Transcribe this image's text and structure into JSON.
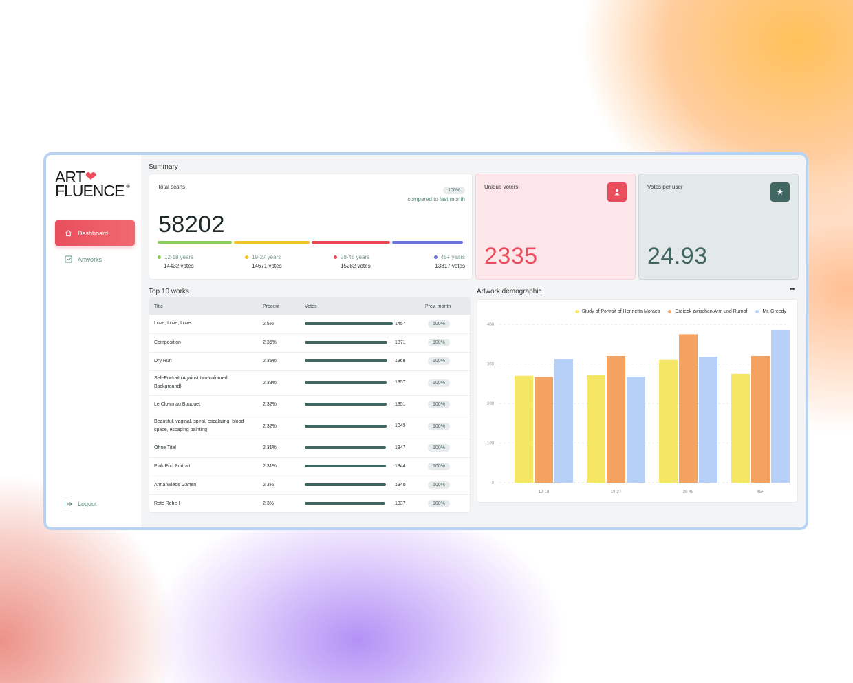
{
  "brand": {
    "logo_line1": "ART",
    "logo_line2": "FLUENCE",
    "logo_reg": "®"
  },
  "sidebar": {
    "items": [
      {
        "label": "Dashboard",
        "icon": "home-icon",
        "active": true
      },
      {
        "label": "Artworks",
        "icon": "chart-icon",
        "active": false
      }
    ],
    "logout_label": "Logout"
  },
  "summary": {
    "section_title": "Summary",
    "total_scans": {
      "label": "Total scans",
      "badge": "100%",
      "compare_text": "compared to last month",
      "value": "58202",
      "segments": [
        {
          "label": "12-18 years",
          "votes": "14432 votes",
          "color": "#8ccf5b"
        },
        {
          "label": "19-27 years",
          "votes": "14671 votes",
          "color": "#f5c129"
        },
        {
          "label": "28-45 years",
          "votes": "15282 votes",
          "color": "#ea4855"
        },
        {
          "label": "45+ years",
          "votes": "13817 votes",
          "color": "#6a72de"
        }
      ]
    },
    "unique_voters": {
      "label": "Unique voters",
      "value": "2335",
      "icon": "user-icon",
      "accent": "#e94e5d"
    },
    "votes_per_user": {
      "label": "Votes per user",
      "value": "24.93",
      "icon": "star-icon",
      "accent": "#3f6661"
    }
  },
  "top_works": {
    "section_title": "Top 10 works",
    "headers": {
      "title": "Title",
      "procent": "Procent",
      "votes": "Votes",
      "prev": "Prev. month"
    },
    "max_votes": 1457,
    "rows": [
      {
        "title": "Love, Love, Love",
        "procent": "2.5%",
        "votes": 1457,
        "prev": "100%"
      },
      {
        "title": "Composition",
        "procent": "2.36%",
        "votes": 1371,
        "prev": "100%"
      },
      {
        "title": "Dry Run",
        "procent": "2.35%",
        "votes": 1368,
        "prev": "100%"
      },
      {
        "title": "Self-Portrait (Against two-coloured Background)",
        "procent": "2.33%",
        "votes": 1357,
        "prev": "100%"
      },
      {
        "title": "Le Clown au Bouquet",
        "procent": "2.32%",
        "votes": 1351,
        "prev": "100%"
      },
      {
        "title": "Beautiful, vaginal, spiral, escalating, blood space, escaping painting",
        "procent": "2.32%",
        "votes": 1349,
        "prev": "100%"
      },
      {
        "title": "Ohne Titel",
        "procent": "2.31%",
        "votes": 1347,
        "prev": "100%"
      },
      {
        "title": "Pink Pod Portrait",
        "procent": "2.31%",
        "votes": 1344,
        "prev": "100%"
      },
      {
        "title": "Anna Wieds Garten",
        "procent": "2.3%",
        "votes": 1340,
        "prev": "100%"
      },
      {
        "title": "Rote Rehe I",
        "procent": "2.3%",
        "votes": 1337,
        "prev": "100%"
      }
    ]
  },
  "demographic": {
    "section_title": "Artwork demographic",
    "more_label": "•••"
  },
  "chart_data": {
    "type": "bar",
    "title": "Artwork demographic",
    "categories": [
      "12-18",
      "19-27",
      "28-45",
      "45+"
    ],
    "series": [
      {
        "name": "Study of Portrait of Henrietta Moraes",
        "color": "#f5e663",
        "values": [
          270,
          272,
          310,
          275
        ]
      },
      {
        "name": "Dreieck zwischen Arm und Rumpf",
        "color": "#f4a261",
        "values": [
          267,
          320,
          375,
          320
        ]
      },
      {
        "name": "Mr. Greedy",
        "color": "#b7d0f7",
        "values": [
          312,
          268,
          318,
          385
        ]
      }
    ],
    "ylim": [
      0,
      400
    ],
    "yticks": [
      0,
      100,
      200,
      300,
      400
    ],
    "grid": true,
    "legend": "top-right"
  }
}
